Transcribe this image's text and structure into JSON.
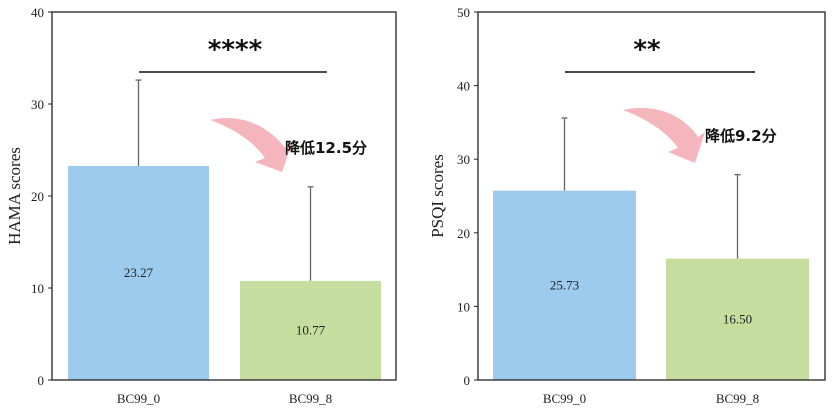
{
  "chart_data": [
    {
      "type": "bar",
      "categories": [
        "BC99_0",
        "BC99_8"
      ],
      "values": [
        23.27,
        10.77
      ],
      "data_labels": [
        "23.27",
        "10.77"
      ],
      "error_upper": [
        32.6,
        21.0
      ],
      "colors": [
        "#9ccbee",
        "#c5de9f"
      ],
      "ylabel": "HAMA scores",
      "ylim": [
        0,
        40
      ],
      "yticks": [
        0,
        10,
        20,
        30,
        40
      ],
      "significance": "****",
      "annotation": "降低12.5分",
      "arrow_color": "#f5b5bd",
      "grid": false
    },
    {
      "type": "bar",
      "categories": [
        "BC99_0",
        "BC99_8"
      ],
      "values": [
        25.73,
        16.5
      ],
      "data_labels": [
        "25.73",
        "16.50"
      ],
      "error_upper": [
        35.6,
        27.9
      ],
      "colors": [
        "#9ccbee",
        "#c5de9f"
      ],
      "ylabel": "PSQI scores",
      "ylim": [
        0,
        50
      ],
      "yticks": [
        0,
        10,
        20,
        30,
        40,
        50
      ],
      "significance": "**",
      "annotation": "降低9.2分",
      "arrow_color": "#f5b5bd",
      "grid": false
    }
  ]
}
